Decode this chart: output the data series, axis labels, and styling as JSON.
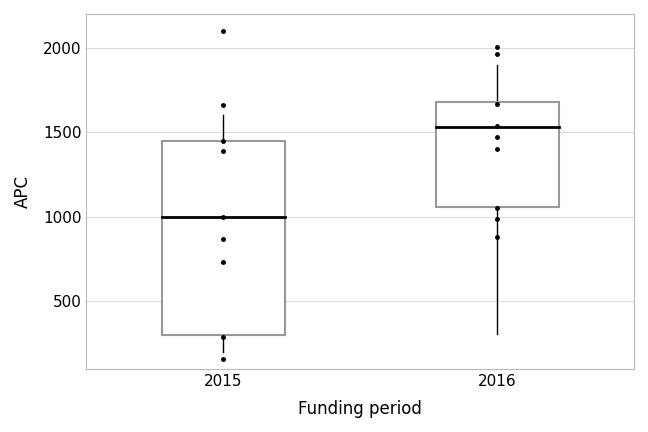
{
  "title": "",
  "xlabel": "Funding period",
  "ylabel": "APC",
  "categories": [
    "2015",
    "2016"
  ],
  "box_data": {
    "2015": {
      "whislo": 200,
      "q1": 300,
      "med": 1000,
      "q3": 1450,
      "whishi": 1600,
      "fliers": [
        2100,
        1660,
        1450,
        1390,
        870,
        735,
        1000,
        290,
        160
      ]
    },
    "2016": {
      "whislo": 310,
      "q1": 1060,
      "med": 1530,
      "q3": 1680,
      "whishi": 1900,
      "fliers": [
        2005,
        1960,
        1670,
        1540,
        1470,
        1400,
        1050,
        985,
        880
      ]
    }
  },
  "ylim": [
    100,
    2200
  ],
  "yticks": [
    500,
    1000,
    1500,
    2000
  ],
  "box_color": "#999999",
  "median_color": "#000000",
  "whisker_color": "#000000",
  "flier_color": "#000000",
  "background_color": "#ffffff",
  "grid_color": "#dddddd"
}
